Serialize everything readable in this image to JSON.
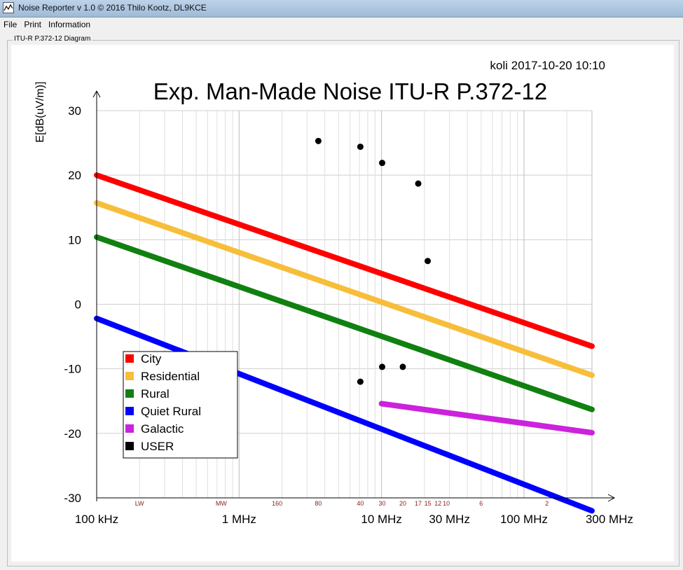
{
  "window": {
    "title": "Noise Reporter v 1.0 © 2016 Thilo Kootz, DL9KCE"
  },
  "menu": [
    {
      "name": "menu-file",
      "label": "File"
    },
    {
      "name": "menu-print",
      "label": "Print"
    },
    {
      "name": "menu-information",
      "label": "Information"
    }
  ],
  "group_label": "ITU-R P.372-12 Diagram",
  "chart_data": {
    "type": "line",
    "title": "Exp. Man-Made Noise ITU-R P.372-12",
    "stamp": "koli 2017-10-20 10:10",
    "ylabel": "E[dB(uV/m)]",
    "ylim": [
      -30,
      30
    ],
    "yticks": [
      30,
      20,
      10,
      0,
      -10,
      -20,
      -30
    ],
    "xscale": "log",
    "xlim_mhz": [
      0.1,
      300
    ],
    "xtick_labels": [
      {
        "mhz": 0.1,
        "label": "100 kHz"
      },
      {
        "mhz": 1,
        "label": "1 MHz"
      },
      {
        "mhz": 10,
        "label": "10 MHz"
      },
      {
        "mhz": 30,
        "label": "30 MHz"
      },
      {
        "mhz": 100,
        "label": "100 MHz"
      },
      {
        "mhz": 300,
        "label": "300 MHz"
      }
    ],
    "band_labels": [
      {
        "mhz": 0.2,
        "label": "LW"
      },
      {
        "mhz": 0.75,
        "label": "MW"
      },
      {
        "mhz": 1.85,
        "label": "160"
      },
      {
        "mhz": 3.6,
        "label": "80"
      },
      {
        "mhz": 7.1,
        "label": "40"
      },
      {
        "mhz": 10.1,
        "label": "30"
      },
      {
        "mhz": 14.1,
        "label": "20"
      },
      {
        "mhz": 18.1,
        "label": "17"
      },
      {
        "mhz": 21.1,
        "label": "15"
      },
      {
        "mhz": 24.9,
        "label": "12"
      },
      {
        "mhz": 28.5,
        "label": "10"
      },
      {
        "mhz": 50,
        "label": "6"
      },
      {
        "mhz": 145,
        "label": "2"
      }
    ],
    "legend_position": "bottom-left",
    "series": [
      {
        "name": "City",
        "color": "#ff0000",
        "x": [
          0.1,
          300
        ],
        "y": [
          20,
          -6.5
        ]
      },
      {
        "name": "Residential",
        "color": "#f7be3a",
        "x": [
          0.1,
          300
        ],
        "y": [
          15.7,
          -11
        ]
      },
      {
        "name": "Rural",
        "color": "#108010",
        "x": [
          0.1,
          300
        ],
        "y": [
          10.4,
          -16.3
        ]
      },
      {
        "name": "Quiet Rural",
        "color": "#0000ff",
        "x": [
          0.1,
          300
        ],
        "y": [
          -2.2,
          -32
        ]
      },
      {
        "name": "Galactic",
        "color": "#cc22dd",
        "x": [
          10,
          300
        ],
        "y": [
          -15.4,
          -19.9
        ]
      },
      {
        "name": "USER",
        "color": "#000000",
        "type": "scatter",
        "x": [
          3.6,
          7.1,
          7.1,
          10.1,
          10.1,
          14.1,
          18.1,
          21.1
        ],
        "y": [
          25.3,
          -12,
          24.4,
          -9.7,
          21.9,
          -9.7,
          18.7,
          6.7
        ]
      }
    ]
  }
}
